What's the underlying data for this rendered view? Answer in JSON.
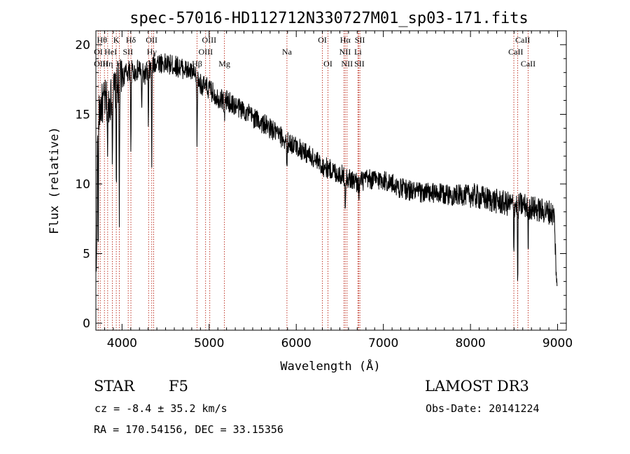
{
  "chart_data": {
    "type": "line",
    "title": "spec-57016-HD112712N330727M01_sp03-171.fits",
    "xlabel": "Wavelength (Å)",
    "ylabel": "Flux (relative)",
    "xlim": [
      3700,
      9100
    ],
    "ylim": [
      -0.5,
      21
    ],
    "xticks": [
      4000,
      5000,
      6000,
      7000,
      8000,
      9000
    ],
    "xtick_labels": [
      "4000",
      "5000",
      "6000",
      "7000",
      "8000",
      "9000"
    ],
    "yticks": [
      0,
      5,
      10,
      15,
      20
    ],
    "ytick_labels": [
      "0",
      "5",
      "10",
      "15",
      "20"
    ],
    "continuum": {
      "x": [
        3705,
        3720,
        3750,
        3800,
        3850,
        3900,
        3950,
        4000,
        4050,
        4100,
        4150,
        4200,
        4250,
        4300,
        4350,
        4400,
        4500,
        4600,
        4700,
        4800,
        4900,
        5000,
        5100,
        5200,
        5300,
        5400,
        5500,
        5600,
        5700,
        5800,
        5900,
        6000,
        6100,
        6200,
        6300,
        6400,
        6500,
        6600,
        6700,
        6800,
        7000,
        7200,
        7400,
        7600,
        7800,
        8000,
        8200,
        8400,
        8500,
        8600,
        8700,
        8800,
        8900,
        8960,
        8995
      ],
      "y": [
        3,
        14,
        15.5,
        16,
        15.8,
        16.6,
        17.2,
        17.6,
        18,
        18.2,
        18,
        18.3,
        17.8,
        18,
        18.5,
        18.8,
        18.6,
        18.5,
        18.3,
        18,
        17.2,
        16.8,
        16.2,
        16,
        15.6,
        15.3,
        14.8,
        14.4,
        14,
        13.5,
        13,
        12.7,
        12.3,
        11.8,
        11.3,
        11,
        10.7,
        10.4,
        10.1,
        10.3,
        10.3,
        9.7,
        9.4,
        9.3,
        9.2,
        9.2,
        8.9,
        8.6,
        8.5,
        8.5,
        8.3,
        8.1,
        8,
        7.8,
        2
      ]
    },
    "absorption_lines": [
      {
        "center": 3727,
        "depth": 10,
        "width": 2.5
      },
      {
        "center": 3835,
        "depth": 4,
        "width": 3
      },
      {
        "center": 3889,
        "depth": 4,
        "width": 3
      },
      {
        "center": 3934,
        "depth": 7,
        "width": 3
      },
      {
        "center": 3969,
        "depth": 10,
        "width": 3
      },
      {
        "center": 4102,
        "depth": 6,
        "width": 3
      },
      {
        "center": 4226,
        "depth": 3,
        "width": 3
      },
      {
        "center": 4303,
        "depth": 4,
        "width": 3
      },
      {
        "center": 4341,
        "depth": 7,
        "width": 3
      },
      {
        "center": 4861,
        "depth": 5,
        "width": 3
      },
      {
        "center": 5175,
        "depth": 1.5,
        "width": 4
      },
      {
        "center": 5893,
        "depth": 2.5,
        "width": 3
      },
      {
        "center": 6563,
        "depth": 2,
        "width": 3
      },
      {
        "center": 6720,
        "depth": 1.2,
        "width": 3
      },
      {
        "center": 8498,
        "depth": 3,
        "width": 3
      },
      {
        "center": 8542,
        "depth": 6,
        "width": 3
      },
      {
        "center": 8662,
        "depth": 3,
        "width": 3
      }
    ],
    "noise": {
      "amplitude": 0.75,
      "step": 3
    },
    "marker_lines": {
      "color": "#c0392b",
      "wavelengths": [
        3727,
        3750,
        3798,
        3835,
        3889,
        3934,
        3969,
        4071,
        4102,
        4305,
        4341,
        4363,
        4861,
        4959,
        5007,
        5175,
        5893,
        6300,
        6364,
        6548,
        6563,
        6583,
        6708,
        6717,
        6731,
        8498,
        8542,
        8662
      ]
    },
    "line_labels": [
      {
        "text": "Hθ",
        "x": 3770,
        "row": 1
      },
      {
        "text": "K",
        "x": 3934,
        "row": 1
      },
      {
        "text": "Hδ",
        "x": 4102,
        "row": 1
      },
      {
        "text": "OII",
        "x": 4340,
        "row": 1
      },
      {
        "text": "OIII",
        "x": 5000,
        "row": 1
      },
      {
        "text": "OI",
        "x": 6300,
        "row": 1
      },
      {
        "text": "Hα",
        "x": 6563,
        "row": 1
      },
      {
        "text": "SII",
        "x": 6730,
        "row": 1
      },
      {
        "text": "CaII",
        "x": 8600,
        "row": 1
      },
      {
        "text": "OI",
        "x": 3728,
        "row": 2
      },
      {
        "text": "HeI",
        "x": 3870,
        "row": 2
      },
      {
        "text": "SII",
        "x": 4068,
        "row": 2
      },
      {
        "text": "Hγ",
        "x": 4341,
        "row": 2
      },
      {
        "text": "OIII",
        "x": 4960,
        "row": 2
      },
      {
        "text": "Na",
        "x": 5893,
        "row": 2
      },
      {
        "text": "NII",
        "x": 6560,
        "row": 2
      },
      {
        "text": "Li",
        "x": 6708,
        "row": 2
      },
      {
        "text": "CaII",
        "x": 8520,
        "row": 2
      },
      {
        "text": "OIII",
        "x": 3760,
        "row": 3
      },
      {
        "text": "Hη",
        "x": 3836,
        "row": 3
      },
      {
        "text": "H",
        "x": 3969,
        "row": 3
      },
      {
        "text": "G",
        "x": 4305,
        "row": 3
      },
      {
        "text": "Hβ",
        "x": 4861,
        "row": 3
      },
      {
        "text": "Mg",
        "x": 5175,
        "row": 3
      },
      {
        "text": "OI",
        "x": 6364,
        "row": 3
      },
      {
        "text": "NII",
        "x": 6583,
        "row": 3
      },
      {
        "text": "SII",
        "x": 6725,
        "row": 3
      },
      {
        "text": "CaII",
        "x": 8662,
        "row": 3
      }
    ]
  },
  "info": {
    "object_class": "STAR",
    "subclass": "F5",
    "survey": "LAMOST DR3",
    "cz": "cz = -8.4 ± 35.2 km/s",
    "obs_date": "Obs-Date: 20141224",
    "coords": "RA = 170.54156, DEC =  33.15356"
  }
}
